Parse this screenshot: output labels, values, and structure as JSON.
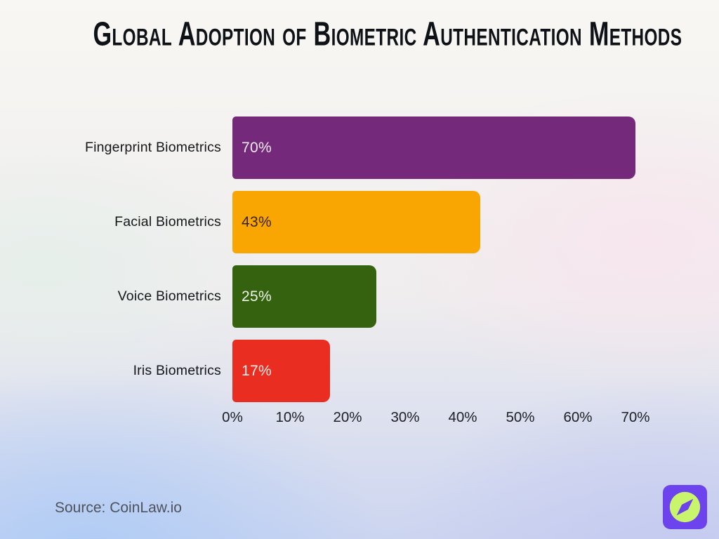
{
  "title": "Global Adoption of Biometric Authentication Methods",
  "source": "Source: CoinLaw.io",
  "logo": {
    "name": "coinlaw-logo",
    "bg_color": "#6d43ee",
    "circle_color": "#c9f56d"
  },
  "chart_data": {
    "type": "bar",
    "orientation": "horizontal",
    "title": "Global Adoption of Biometric Authentication Methods",
    "categories": [
      "Fingerprint Biometrics",
      "Facial Biometrics",
      "Voice Biometrics",
      "Iris Biometrics"
    ],
    "values": [
      70,
      43,
      25,
      17
    ],
    "value_labels": [
      "70%",
      "43%",
      "25%",
      "17%"
    ],
    "bar_colors": [
      "#75297b",
      "#f9a602",
      "#35620e",
      "#e92d21"
    ],
    "value_label_colors": [
      "#f6ecf5",
      "#3a2405",
      "#eff3ea",
      "#fdecea"
    ],
    "xlim": [
      0,
      70
    ],
    "x_tick_labels": [
      "0%",
      "10%",
      "20%",
      "30%",
      "40%",
      "50%",
      "60%",
      "70%"
    ],
    "xlabel": "",
    "ylabel": "",
    "grid": false,
    "legend": false
  }
}
